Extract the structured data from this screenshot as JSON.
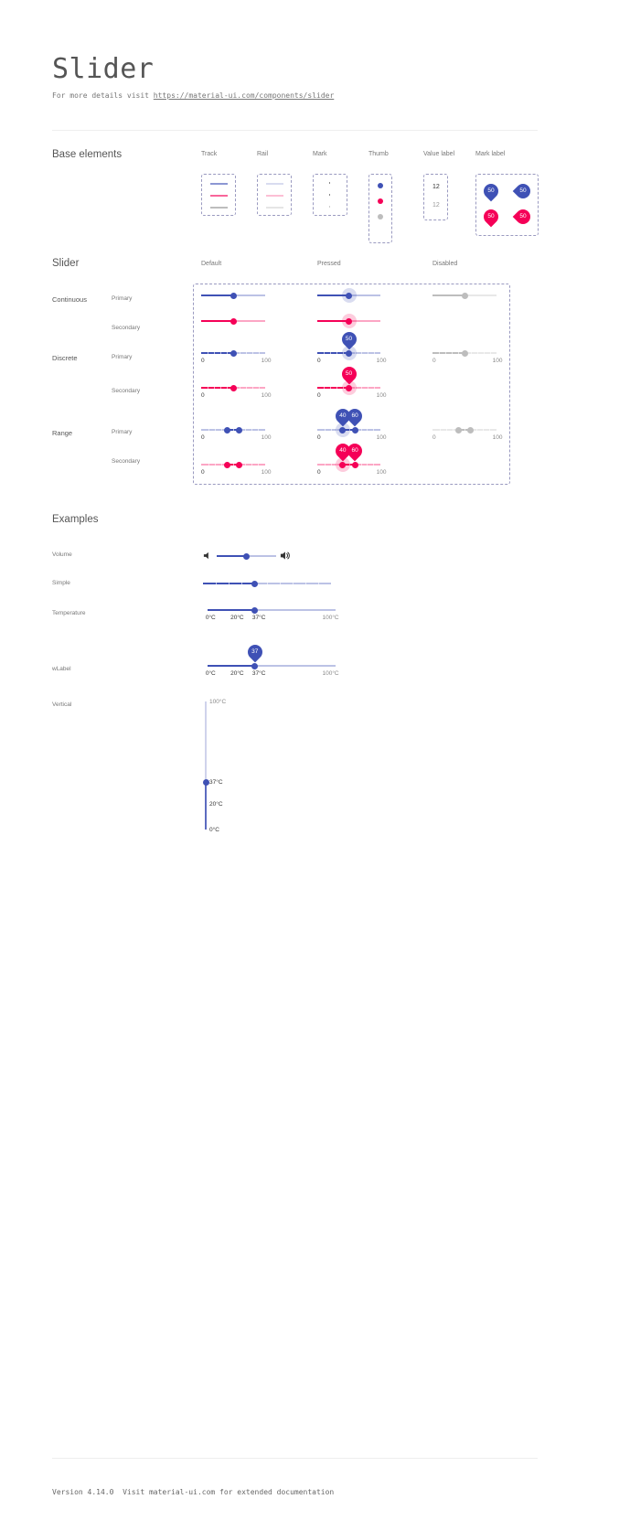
{
  "header": {
    "title": "Slider",
    "subtitle_prefix": "For more details visit",
    "link": "https://material-ui.com/components/slider"
  },
  "colors": {
    "primary": "#3f51b5",
    "secondary": "#f50057",
    "disabled": "#bdbdbd"
  },
  "base_elements": {
    "heading": "Base elements",
    "columns": [
      "Track",
      "Rail",
      "Mark",
      "Thumb",
      "Value label",
      "Mark label"
    ],
    "value_label": [
      "12",
      "12"
    ],
    "mark_labels": [
      "50",
      "50",
      "50",
      "50"
    ]
  },
  "slider_section": {
    "heading": "Slider",
    "columns": [
      "Default",
      "Pressed",
      "Disabled"
    ],
    "groups": [
      "Continuous",
      "Discrete",
      "Range"
    ],
    "variants": [
      "Primary",
      "Secondary"
    ],
    "rows": [
      {
        "type": "continuous",
        "color": "primary",
        "value": 50,
        "states": [
          "default",
          "pressed",
          "disabled"
        ]
      },
      {
        "type": "continuous",
        "color": "secondary",
        "value": 50,
        "states": [
          "default",
          "pressed"
        ]
      },
      {
        "type": "discrete",
        "color": "primary",
        "value": 50,
        "value_label": "50",
        "marks": [
          "0",
          "100"
        ],
        "states": [
          "default",
          "pressed",
          "disabled"
        ]
      },
      {
        "type": "discrete",
        "color": "secondary",
        "value": 50,
        "value_label": "50",
        "marks": [
          "0",
          "100"
        ],
        "states": [
          "default",
          "pressed"
        ]
      },
      {
        "type": "range",
        "color": "primary",
        "value": [
          40,
          60
        ],
        "value_labels": [
          "40",
          "60"
        ],
        "marks": [
          "0",
          "100"
        ],
        "states": [
          "default",
          "pressed",
          "disabled"
        ]
      },
      {
        "type": "range",
        "color": "secondary",
        "value": [
          40,
          60
        ],
        "value_labels": [
          "40",
          "60"
        ],
        "marks": [
          "0",
          "100"
        ],
        "states": [
          "default",
          "pressed"
        ]
      }
    ]
  },
  "examples": {
    "heading": "Examples",
    "volume": {
      "label": "Volume",
      "value": 50,
      "icons": [
        "volume-down-icon",
        "volume-up-icon"
      ]
    },
    "simple": {
      "label": "Simple",
      "value": 40
    },
    "temperature": {
      "label": "Temperature",
      "value": 37,
      "marks": [
        {
          "value": 0,
          "label": "0°C"
        },
        {
          "value": 20,
          "label": "20°C"
        },
        {
          "value": 37,
          "label": "37°C"
        },
        {
          "value": 100,
          "label": "100°C"
        }
      ]
    },
    "wlabel": {
      "label": "wLabel",
      "value": 37,
      "value_label": "37",
      "marks": [
        {
          "value": 0,
          "label": "0°C"
        },
        {
          "value": 20,
          "label": "20°C"
        },
        {
          "value": 37,
          "label": "37°C"
        },
        {
          "value": 100,
          "label": "100°C"
        }
      ]
    },
    "vertical": {
      "label": "Vertical",
      "value": 37,
      "marks": [
        {
          "value": 100,
          "label": "100°C"
        },
        {
          "value": 37,
          "label": "37°C"
        },
        {
          "value": 20,
          "label": "20°C"
        },
        {
          "value": 0,
          "label": "0°C"
        }
      ]
    }
  },
  "footer": {
    "text": "Version 4.14.0  Visit material-ui.com for extended documentation"
  }
}
